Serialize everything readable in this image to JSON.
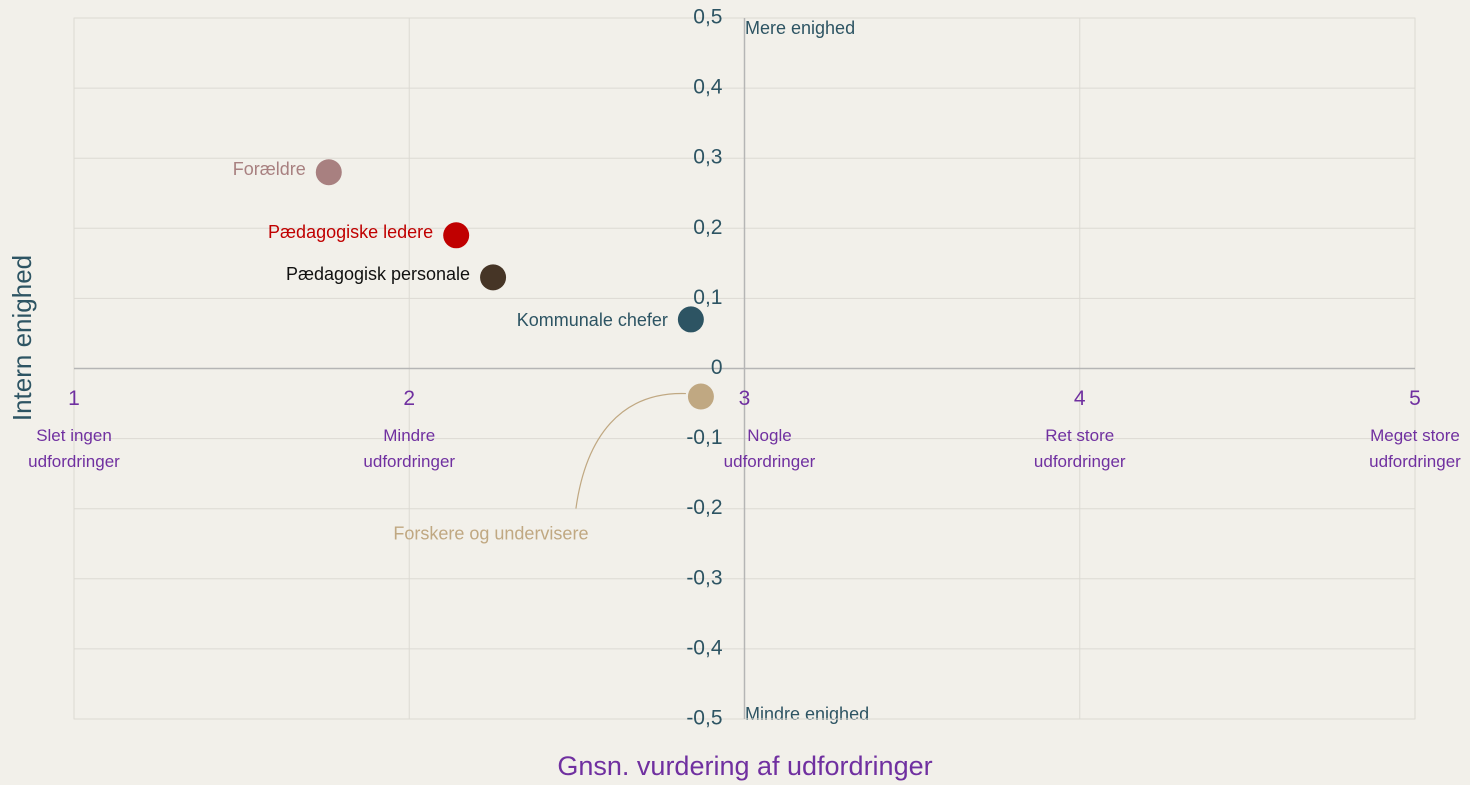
{
  "chart_data": {
    "type": "scatter",
    "xlabel": "Gnsn. vurdering af udfordringer",
    "ylabel": "Intern enighed",
    "xlim": [
      1,
      5
    ],
    "ylim": [
      -0.5,
      0.5
    ],
    "xticks": [
      1,
      2,
      3,
      4,
      5
    ],
    "xtick_captions": [
      [
        "Slet ingen",
        "udfordringer"
      ],
      [
        "Mindre",
        "udfordringer"
      ],
      [
        "Nogle",
        "udfordringer"
      ],
      [
        "Ret store",
        "udfordringer"
      ],
      [
        "Meget store",
        "udfordringer"
      ]
    ],
    "yticks": [
      {
        "value": -0.5,
        "label": "-0,5"
      },
      {
        "value": -0.4,
        "label": "-0,4"
      },
      {
        "value": -0.3,
        "label": "-0,3"
      },
      {
        "value": -0.2,
        "label": "-0,2"
      },
      {
        "value": -0.1,
        "label": "-0,1"
      },
      0,
      {
        "value": 0.1,
        "label": "0,1"
      },
      {
        "value": 0.2,
        "label": "0,2"
      },
      {
        "value": 0.3,
        "label": "0,3"
      },
      {
        "value": 0.4,
        "label": "0,4"
      },
      {
        "value": 0.5,
        "label": "0,5"
      }
    ],
    "annotations": [
      "Mere enighed",
      "Mindre enighed"
    ],
    "grid": true,
    "series": [
      {
        "name": "Forældre",
        "color": "#a88080",
        "label_color": "#a88080",
        "x": [
          1.76
        ],
        "values": [
          0.28
        ]
      },
      {
        "name": "Pædagogiske ledere",
        "color": "#c00000",
        "label_color": "#c00000",
        "x": [
          2.14
        ],
        "values": [
          0.19
        ]
      },
      {
        "name": "Pædagogisk personale",
        "color": "#463526",
        "label_color": "#111111",
        "x": [
          2.25
        ],
        "values": [
          0.13
        ]
      },
      {
        "name": "Kommunale chefer",
        "color": "#2d5463",
        "label_color": "#2d5463",
        "x": [
          2.84
        ],
        "values": [
          0.07
        ]
      },
      {
        "name": "Forskere og undervisere",
        "color": "#c0a882",
        "label_color": "#c0a882",
        "x": [
          2.87
        ],
        "values": [
          -0.04
        ]
      }
    ]
  }
}
